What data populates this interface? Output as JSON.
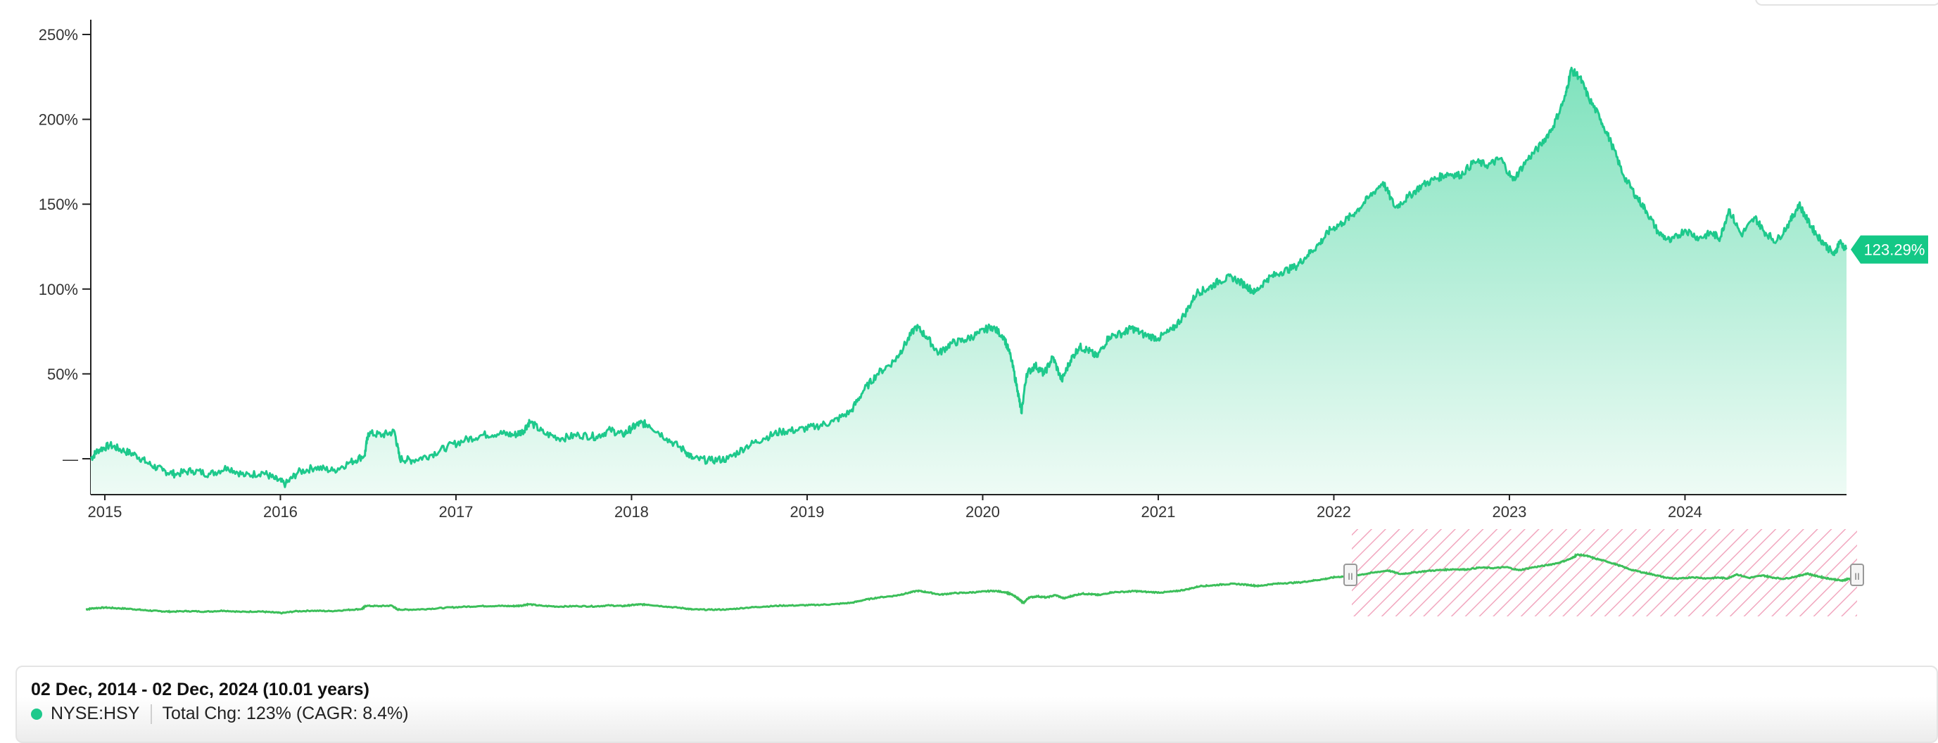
{
  "colors": {
    "line": "#1ec98c",
    "fill_top": "#7fe2bd",
    "fill_bottom": "#eefbf5",
    "badge": "#14c886",
    "navigator_line": "#3cbf5a",
    "selection_hatch": "#f2a7bf",
    "axis": "#222222"
  },
  "chart_data": {
    "type": "area",
    "y_ticks": [
      "250%",
      "200%",
      "150%",
      "100%",
      "50%",
      "—"
    ],
    "y_tick_values": [
      250,
      200,
      150,
      100,
      50,
      0
    ],
    "x_ticks": [
      "2015",
      "2016",
      "2017",
      "2018",
      "2019",
      "2020",
      "2021",
      "2022",
      "2023",
      "2024"
    ],
    "x_tick_values": [
      2015.0,
      2016.0,
      2017.0,
      2018.0,
      2019.0,
      2020.0,
      2021.0,
      2022.0,
      2023.0,
      2024.0
    ],
    "xlim": [
      2014.92,
      2024.92
    ],
    "ylim": [
      -20,
      260
    ],
    "grid": false,
    "series": [
      {
        "x": [
          2014.92,
          2014.96,
          2015.03,
          2015.1,
          2015.18,
          2015.25,
          2015.33,
          2015.4,
          2015.5,
          2015.6,
          2015.7,
          2015.8,
          2015.9,
          2015.97,
          2016.03,
          2016.1,
          2016.2,
          2016.3,
          2016.4,
          2016.48,
          2016.5,
          2016.58,
          2016.65,
          2016.68,
          2016.75,
          2016.85,
          2016.95,
          2017.05,
          2017.15,
          2017.25,
          2017.33,
          2017.38,
          2017.42,
          2017.5,
          2017.6,
          2017.7,
          2017.8,
          2017.88,
          2017.95,
          2018.0,
          2018.05,
          2018.1,
          2018.2,
          2018.3,
          2018.35,
          2018.45,
          2018.55,
          2018.65,
          2018.75,
          2018.85,
          2018.95,
          2019.05,
          2019.15,
          2019.25,
          2019.32,
          2019.4,
          2019.5,
          2019.55,
          2019.62,
          2019.68,
          2019.75,
          2019.82,
          2019.9,
          2019.98,
          2020.05,
          2020.12,
          2020.16,
          2020.2,
          2020.22,
          2020.25,
          2020.3,
          2020.35,
          2020.4,
          2020.45,
          2020.5,
          2020.55,
          2020.6,
          2020.65,
          2020.72,
          2020.8,
          2020.85,
          2020.92,
          2021.0,
          2021.08,
          2021.15,
          2021.22,
          2021.28,
          2021.35,
          2021.42,
          2021.5,
          2021.55,
          2021.62,
          2021.7,
          2021.78,
          2021.85,
          2021.92,
          2021.98,
          2022.05,
          2022.12,
          2022.2,
          2022.28,
          2022.35,
          2022.42,
          2022.5,
          2022.58,
          2022.65,
          2022.72,
          2022.8,
          2022.88,
          2022.95,
          2023.02,
          2023.1,
          2023.18,
          2023.25,
          2023.32,
          2023.35,
          2023.4,
          2023.45,
          2023.52,
          2023.58,
          2023.65,
          2023.72,
          2023.78,
          2023.85,
          2023.92,
          2024.0,
          2024.08,
          2024.15,
          2024.2,
          2024.25,
          2024.32,
          2024.4,
          2024.45,
          2024.52,
          2024.6,
          2024.65,
          2024.7,
          2024.75,
          2024.8,
          2024.85,
          2024.88,
          2024.92
        ],
        "y": [
          0,
          5,
          8,
          5,
          2,
          -3,
          -7,
          -9,
          -7,
          -9,
          -5,
          -10,
          -8,
          -12,
          -15,
          -8,
          -5,
          -7,
          -2,
          2,
          15,
          14,
          16,
          0,
          -1,
          2,
          7,
          11,
          14,
          15,
          14,
          16,
          22,
          15,
          12,
          14,
          13,
          17,
          14,
          18,
          21,
          20,
          12,
          5,
          0,
          -1,
          0,
          7,
          12,
          16,
          17,
          19,
          22,
          28,
          40,
          50,
          58,
          66,
          78,
          72,
          62,
          68,
          70,
          74,
          78,
          72,
          60,
          40,
          27,
          50,
          55,
          50,
          60,
          46,
          58,
          66,
          64,
          60,
          72,
          74,
          77,
          73,
          71,
          76,
          85,
          98,
          100,
          105,
          107,
          102,
          98,
          106,
          110,
          113,
          120,
          127,
          135,
          139,
          145,
          154,
          163,
          148,
          154,
          161,
          165,
          168,
          167,
          175,
          173,
          177,
          164,
          176,
          185,
          196,
          214,
          229,
          225,
          213,
          200,
          186,
          167,
          155,
          146,
          133,
          128,
          135,
          130,
          133,
          130,
          147,
          132,
          142,
          134,
          128,
          140,
          150,
          140,
          132,
          126,
          120,
          128,
          123.29
        ]
      }
    ],
    "end_label": "123.29%"
  },
  "navigator": {
    "handle_left_label": "II",
    "handle_right_label": "II"
  },
  "info": {
    "date_range": "02 Dec, 2014 - 02 Dec, 2024 (10.01 years)",
    "ticker": "NYSE:HSY",
    "total_change": "Total Chg: 123% (CAGR: 8.4%)"
  }
}
